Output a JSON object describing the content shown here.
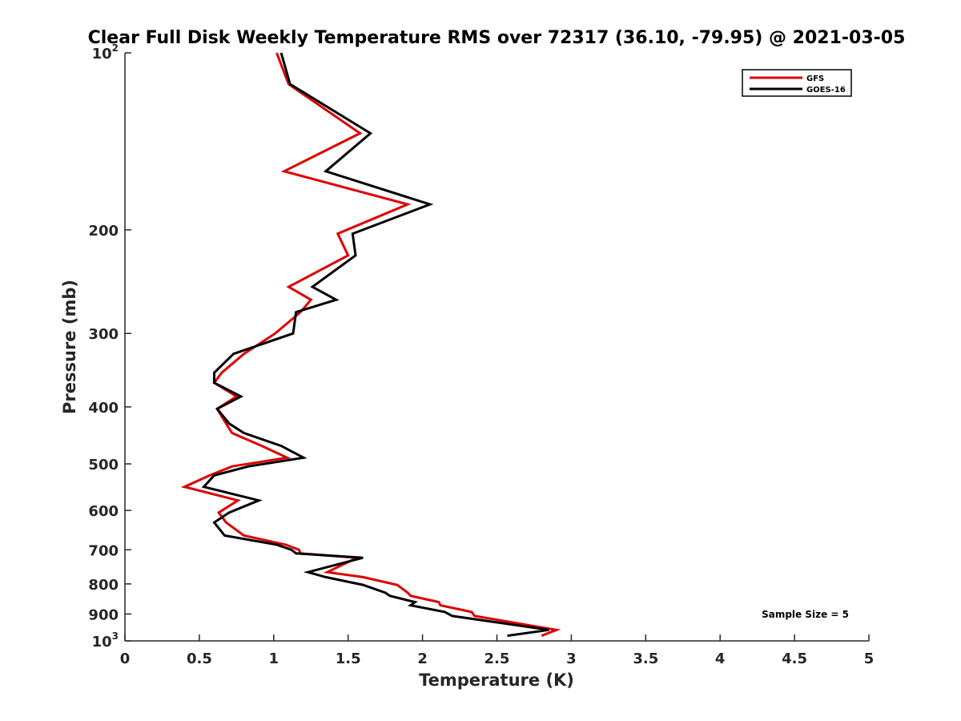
{
  "chart_data": {
    "type": "line",
    "title": "Clear Full Disk Weekly Temperature RMS over 72317 (36.10, -79.95) @ 2021-03-05",
    "xlabel": "Temperature (K)",
    "ylabel": "Pressure (mb)",
    "xlim": [
      0,
      5
    ],
    "ylim": [
      100,
      1000
    ],
    "y_scale": "log",
    "y_reversed": true,
    "x_ticks": [
      0,
      0.5,
      1,
      1.5,
      2,
      2.5,
      3,
      3.5,
      4,
      4.5,
      5
    ],
    "x_tick_labels": [
      "0",
      "0.5",
      "1",
      "1.5",
      "2",
      "2.5",
      "3",
      "3.5",
      "4",
      "4.5",
      "5"
    ],
    "y_ticks": [
      {
        "value": 100,
        "base": "10",
        "exp": "2"
      },
      {
        "value": 200,
        "label": "200"
      },
      {
        "value": 300,
        "label": "300"
      },
      {
        "value": 400,
        "label": "400"
      },
      {
        "value": 500,
        "label": "500"
      },
      {
        "value": 600,
        "label": "600"
      },
      {
        "value": 700,
        "label": "700"
      },
      {
        "value": 800,
        "label": "800"
      },
      {
        "value": 900,
        "label": "900"
      },
      {
        "value": 1000,
        "base": "10",
        "exp": "3"
      }
    ],
    "grid": false,
    "legend_position": "top-right",
    "annotation": "Sample Size = 5",
    "series": [
      {
        "name": "GFS",
        "color": "#dd0000",
        "points": [
          [
            1.02,
            100
          ],
          [
            1.1,
            113
          ],
          [
            1.58,
            137
          ],
          [
            1.07,
            159
          ],
          [
            1.9,
            181
          ],
          [
            1.43,
            203
          ],
          [
            1.5,
            221
          ],
          [
            1.1,
            250
          ],
          [
            1.25,
            263
          ],
          [
            1.18,
            276
          ],
          [
            1.01,
            300
          ],
          [
            0.8,
            325
          ],
          [
            0.65,
            350
          ],
          [
            0.6,
            364
          ],
          [
            0.75,
            384
          ],
          [
            0.62,
            403
          ],
          [
            0.68,
            427
          ],
          [
            0.72,
            443
          ],
          [
            0.92,
            466
          ],
          [
            1.09,
            488
          ],
          [
            0.72,
            505
          ],
          [
            0.57,
            523
          ],
          [
            0.4,
            547
          ],
          [
            0.76,
            577
          ],
          [
            0.63,
            605
          ],
          [
            0.68,
            629
          ],
          [
            0.8,
            662
          ],
          [
            1.08,
            686
          ],
          [
            1.17,
            700
          ],
          [
            1.18,
            710
          ],
          [
            1.56,
            722
          ],
          [
            1.36,
            764
          ],
          [
            1.6,
            779
          ],
          [
            1.83,
            803
          ],
          [
            1.9,
            828
          ],
          [
            1.92,
            838
          ],
          [
            2.11,
            859
          ],
          [
            2.12,
            870
          ],
          [
            2.33,
            893
          ],
          [
            2.35,
            907
          ],
          [
            2.9,
            958
          ],
          [
            2.8,
            980
          ]
        ]
      },
      {
        "name": "GOES-16",
        "color": "#000000",
        "points": [
          [
            1.05,
            100
          ],
          [
            1.11,
            113
          ],
          [
            1.65,
            137
          ],
          [
            1.35,
            159
          ],
          [
            2.05,
            181
          ],
          [
            1.53,
            203
          ],
          [
            1.55,
            221
          ],
          [
            1.26,
            250
          ],
          [
            1.42,
            263
          ],
          [
            1.15,
            276
          ],
          [
            1.13,
            300
          ],
          [
            0.73,
            325
          ],
          [
            0.6,
            350
          ],
          [
            0.6,
            364
          ],
          [
            0.78,
            384
          ],
          [
            0.62,
            403
          ],
          [
            0.7,
            427
          ],
          [
            0.8,
            443
          ],
          [
            1.05,
            466
          ],
          [
            1.2,
            488
          ],
          [
            0.83,
            505
          ],
          [
            0.6,
            523
          ],
          [
            0.53,
            547
          ],
          [
            0.9,
            577
          ],
          [
            0.7,
            605
          ],
          [
            0.6,
            629
          ],
          [
            0.67,
            662
          ],
          [
            1.02,
            686
          ],
          [
            1.12,
            700
          ],
          [
            1.15,
            710
          ],
          [
            1.6,
            722
          ],
          [
            1.23,
            764
          ],
          [
            1.35,
            779
          ],
          [
            1.6,
            803
          ],
          [
            1.75,
            828
          ],
          [
            1.78,
            838
          ],
          [
            1.95,
            859
          ],
          [
            1.92,
            870
          ],
          [
            2.15,
            893
          ],
          [
            2.2,
            907
          ],
          [
            2.85,
            958
          ],
          [
            2.57,
            980
          ]
        ]
      }
    ]
  }
}
